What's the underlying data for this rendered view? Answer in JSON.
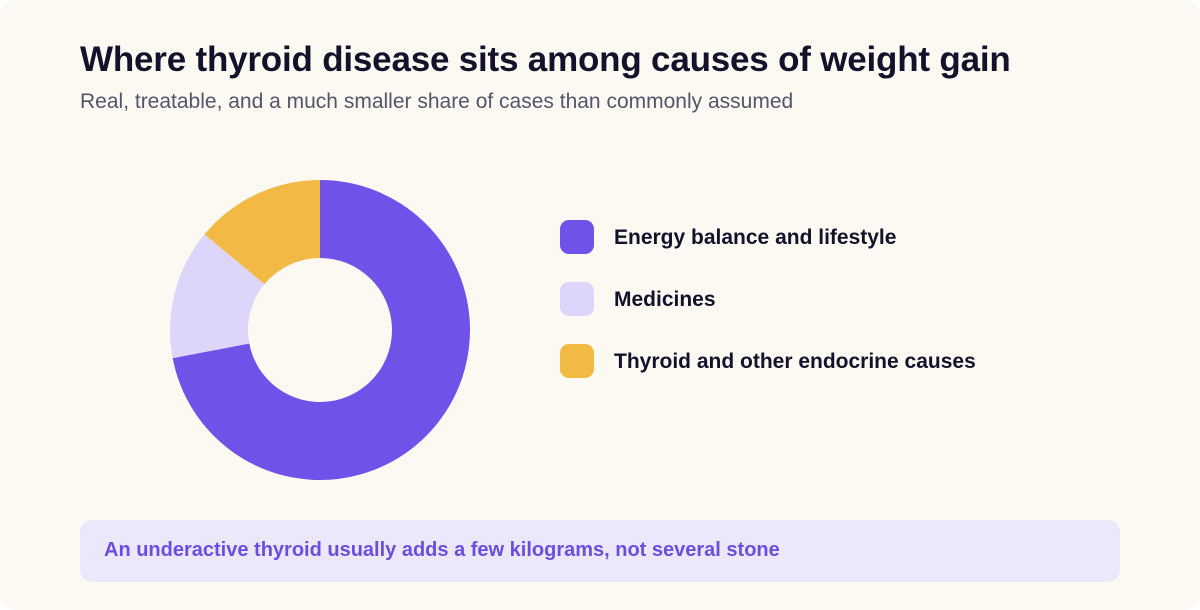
{
  "title": "Where thyroid disease sits among causes of weight gain",
  "subtitle": "Real, treatable, and a much smaller share of cases than commonly assumed",
  "chart_data": {
    "type": "pie",
    "variant": "donut",
    "title": "Where thyroid disease sits among causes of weight gain",
    "subtitle": "Real, treatable, and a much smaller share of cases than commonly assumed",
    "categories": [
      "Energy balance and lifestyle",
      "Medicines",
      "Thyroid and other endocrine causes"
    ],
    "values": [
      72,
      14,
      14
    ],
    "colors": [
      "#7152e8",
      "#ddd6fa",
      "#f2b944"
    ],
    "start_angle_deg": 0,
    "direction": "clockwise",
    "legend_position": "right"
  },
  "legend": {
    "items": [
      {
        "label": "Energy balance and lifestyle",
        "color": "#7152e8"
      },
      {
        "label": "Medicines",
        "color": "#ddd6fa"
      },
      {
        "label": "Thyroid and other endocrine causes",
        "color": "#f2b944"
      }
    ]
  },
  "note": {
    "text": "An underactive thyroid usually adds a few kilograms, not several stone"
  }
}
